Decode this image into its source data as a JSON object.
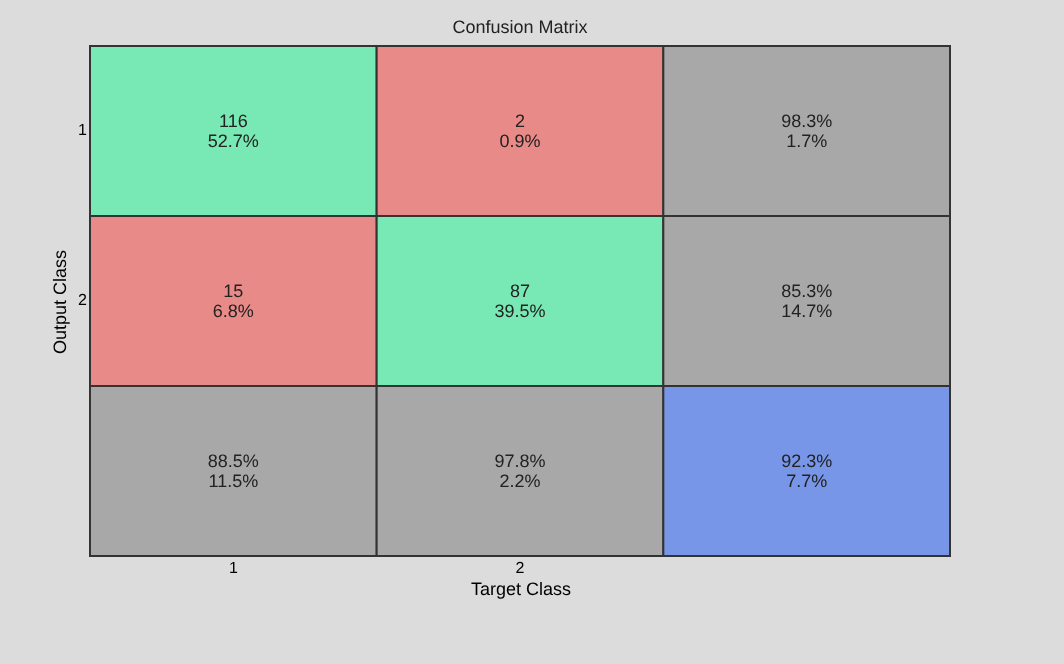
{
  "chart_data": {
    "type": "heatmap",
    "title": "Confusion Matrix",
    "xlabel": "Target Class",
    "ylabel": "Output Class",
    "categories": [
      "1",
      "2",
      null
    ],
    "y_categories": [
      "1",
      "2",
      null
    ],
    "data_labels": true,
    "cells": [
      [
        116,
        2,
        98.3
      ],
      [
        15,
        87,
        85.3
      ],
      [
        88.5,
        97.8,
        92.3
      ]
    ],
    "cell_labels": [
      [
        "116",
        "2",
        "98.3%"
      ],
      [
        "15",
        "87",
        "85.3%"
      ],
      [
        "88.5%",
        "97.8%",
        "92.3%"
      ]
    ],
    "annotations": [
      "52.7%",
      "0.9%",
      "1.7%",
      "6.8%",
      "39.5%",
      "14.7%",
      "11.5%",
      "2.2%",
      "7.7%"
    ],
    "colors": [
      "#78e8b4",
      "#e88a88",
      "#a8a8a8",
      "#e88a88",
      "#78e8b4",
      "#a8a8a8",
      "#a8a8a8",
      "#a8a8a8",
      "#7896e8"
    ]
  }
}
